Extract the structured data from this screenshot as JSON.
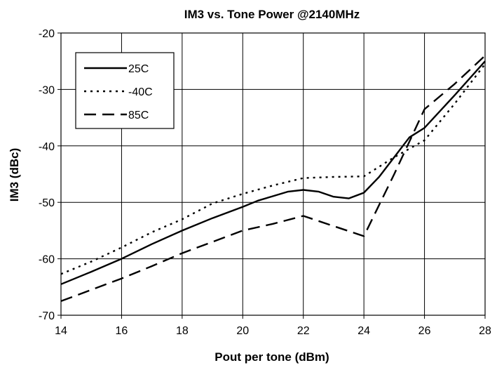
{
  "chart_data": {
    "type": "line",
    "title": "IM3 vs. Tone Power @2140MHz",
    "xlabel": "Pout per tone (dBm)",
    "ylabel": "IM3 (dBc)",
    "xlim": [
      14,
      28
    ],
    "ylim": [
      -70,
      -20
    ],
    "xticks": [
      14,
      16,
      18,
      20,
      22,
      24,
      26,
      28
    ],
    "yticks": [
      -20,
      -30,
      -40,
      -50,
      -60,
      -70
    ],
    "grid": true,
    "legend_position": "top-left",
    "series": [
      {
        "name": "25C",
        "style": "solid",
        "color": "#000000",
        "x": [
          14,
          15,
          16,
          17,
          18,
          19,
          20,
          20.5,
          21,
          21.5,
          22,
          22.5,
          23,
          23.5,
          24,
          24.5,
          25,
          25.5,
          26,
          27,
          28
        ],
        "y": [
          -64.5,
          -62.3,
          -60,
          -57.4,
          -55,
          -52.8,
          -50.8,
          -49.7,
          -48.9,
          -48.1,
          -47.8,
          -48.1,
          -49,
          -49.3,
          -48.3,
          -45.5,
          -42,
          -38.5,
          -36.8,
          -31,
          -25
        ]
      },
      {
        "name": "-40C",
        "style": "dotted",
        "color": "#000000",
        "x": [
          14,
          15,
          16,
          17,
          18,
          19,
          20,
          21,
          22,
          23,
          24,
          25,
          26,
          27,
          28
        ],
        "y": [
          -62.7,
          -60.5,
          -58,
          -55.3,
          -53,
          -50.2,
          -48.5,
          -47,
          -45.7,
          -45.5,
          -45.4,
          -42,
          -39,
          -32.5,
          -25.5
        ]
      },
      {
        "name": "85C",
        "style": "dashed",
        "color": "#000000",
        "x": [
          14,
          15,
          16,
          17,
          18,
          19,
          20,
          21,
          22,
          23,
          24,
          25,
          26,
          27,
          28
        ],
        "y": [
          -67.5,
          -65.5,
          -63.5,
          -61.3,
          -59,
          -57,
          -55,
          -53.8,
          -52.4,
          -54.2,
          -56,
          -45,
          -33.5,
          -29,
          -24
        ]
      }
    ]
  }
}
